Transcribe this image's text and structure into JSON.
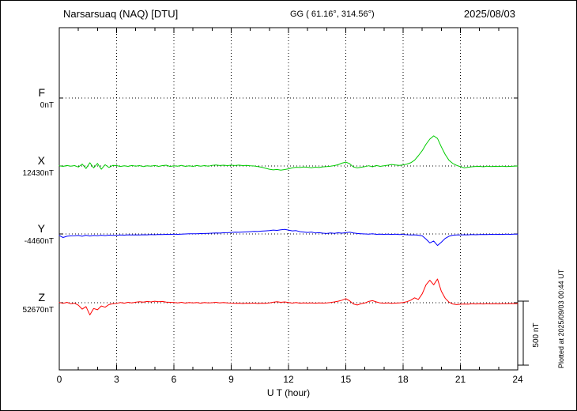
{
  "header": {
    "station": "Narsarsuaq (NAQ) [DTU]",
    "coords": "GG ( 61.16°, 314.56°)",
    "date": "2025/08/03"
  },
  "axis": {
    "xlabel": "U T (hour)"
  },
  "side": {
    "plotted_at": "Plotted at 2025/09/03 00:44 UT",
    "scale_label": "500 nT"
  },
  "chart_data": {
    "type": "line",
    "title": "Narsarsuaq (NAQ) [DTU] magnetogram 2025/08/03",
    "xlabel": "U T (hour)",
    "x_range": [
      0,
      24
    ],
    "x_ticks": [
      0,
      3,
      6,
      9,
      12,
      15,
      18,
      21,
      24
    ],
    "sample_interval_hours": 0.2,
    "scale_bar_nT": 500,
    "grid": "dotted",
    "legend_position": "left",
    "series": [
      {
        "name": "F",
        "color": "#FFA500",
        "baseline_label": "0nT",
        "baseline_nT": 0,
        "plotted": false,
        "offsets_nT": []
      },
      {
        "name": "X",
        "color": "#00CC00",
        "baseline_label": "12430nT",
        "baseline_nT": 12430,
        "plotted": true,
        "offsets_nT": [
          2,
          -3,
          4,
          -2,
          3,
          -8,
          15,
          -20,
          25,
          -15,
          20,
          -25,
          10,
          -12,
          5,
          3,
          -4,
          2,
          -3,
          4,
          -2,
          3,
          -5,
          2,
          -2,
          4,
          -3,
          3,
          6,
          -4,
          2,
          -2,
          5,
          -3,
          2,
          -3,
          4,
          -2,
          3,
          -2,
          5,
          8,
          4,
          6,
          3,
          6,
          4,
          7,
          3,
          5,
          2,
          0,
          -5,
          -10,
          -18,
          -25,
          -30,
          -27,
          -32,
          -28,
          -22,
          -15,
          -10,
          -12,
          -8,
          -10,
          -14,
          -9,
          -12,
          -7,
          -5,
          -2,
          3,
          10,
          22,
          30,
          18,
          -8,
          -15,
          -10,
          -5,
          2,
          -6,
          4,
          -3,
          2,
          6,
          12,
          8,
          5,
          8,
          15,
          25,
          45,
          80,
          120,
          170,
          210,
          235,
          215,
          150,
          90,
          45,
          20,
          5,
          -5,
          -15,
          -10,
          -6,
          -4,
          -3,
          -6,
          -2,
          -5,
          -3,
          -4,
          -2,
          -5,
          -3,
          -2,
          0
        ]
      },
      {
        "name": "Y",
        "color": "#0000FF",
        "baseline_label": "-4460nT",
        "baseline_nT": -4460,
        "plotted": true,
        "offsets_nT": [
          -12,
          -28,
          -18,
          -15,
          -14,
          -12,
          -18,
          -10,
          -16,
          -12,
          -14,
          -10,
          -13,
          -9,
          -11,
          -10,
          -8,
          -9,
          -7,
          -8,
          -7,
          -8,
          -6,
          -7,
          -5,
          -6,
          -4,
          -5,
          -3,
          -4,
          -2,
          -3,
          -1,
          0,
          1,
          2,
          1,
          3,
          4,
          5,
          6,
          8,
          7,
          9,
          10,
          12,
          14,
          13,
          15,
          16,
          18,
          20,
          19,
          22,
          24,
          26,
          30,
          28,
          33,
          35,
          30,
          24,
          26,
          18,
          15,
          12,
          15,
          8,
          10,
          6,
          4,
          8,
          5,
          9,
          6,
          10,
          14,
          8,
          4,
          2,
          0,
          -2,
          1,
          -3,
          -2,
          -3,
          -1,
          -4,
          -2,
          -5,
          -4,
          -6,
          -8,
          -7,
          -10,
          -15,
          -40,
          -70,
          -55,
          -90,
          -65,
          -35,
          -18,
          -10,
          -8,
          -8,
          -6,
          -7,
          -5,
          -6,
          -5,
          -4,
          -5,
          -3,
          -4,
          -3,
          -4,
          -2,
          -3,
          -2,
          -2
        ]
      },
      {
        "name": "Z",
        "color": "#FF0000",
        "baseline_label": "52670nT",
        "baseline_nT": 52670,
        "plotted": true,
        "offsets_nT": [
          2,
          -5,
          3,
          -8,
          -4,
          -20,
          -50,
          -30,
          -95,
          -45,
          -55,
          -25,
          -35,
          -15,
          -8,
          -5,
          2,
          -4,
          3,
          -2,
          4,
          8,
          5,
          10,
          6,
          12,
          8,
          10,
          5,
          3,
          2,
          -2,
          3,
          -3,
          2,
          -2,
          2,
          -4,
          1,
          -2,
          0,
          3,
          -2,
          2,
          -1,
          -3,
          -5,
          -4,
          -6,
          -4,
          -5,
          -3,
          -6,
          -4,
          -5,
          -2,
          4,
          8,
          3,
          6,
          2,
          -3,
          1,
          -4,
          -2,
          -3,
          -1,
          -4,
          -2,
          -3,
          -2,
          2,
          6,
          12,
          20,
          32,
          15,
          -10,
          -18,
          -8,
          -2,
          10,
          16,
          6,
          -2,
          -4,
          -2,
          -5,
          -3,
          -2,
          2,
          8,
          20,
          38,
          25,
          70,
          140,
          175,
          140,
          185,
          90,
          35,
          5,
          -10,
          -15,
          -12,
          -10,
          -12,
          -8,
          -10,
          -8,
          -10,
          -7,
          -9,
          -8,
          -9,
          -7,
          -8,
          -6,
          -7,
          -7
        ]
      }
    ]
  }
}
